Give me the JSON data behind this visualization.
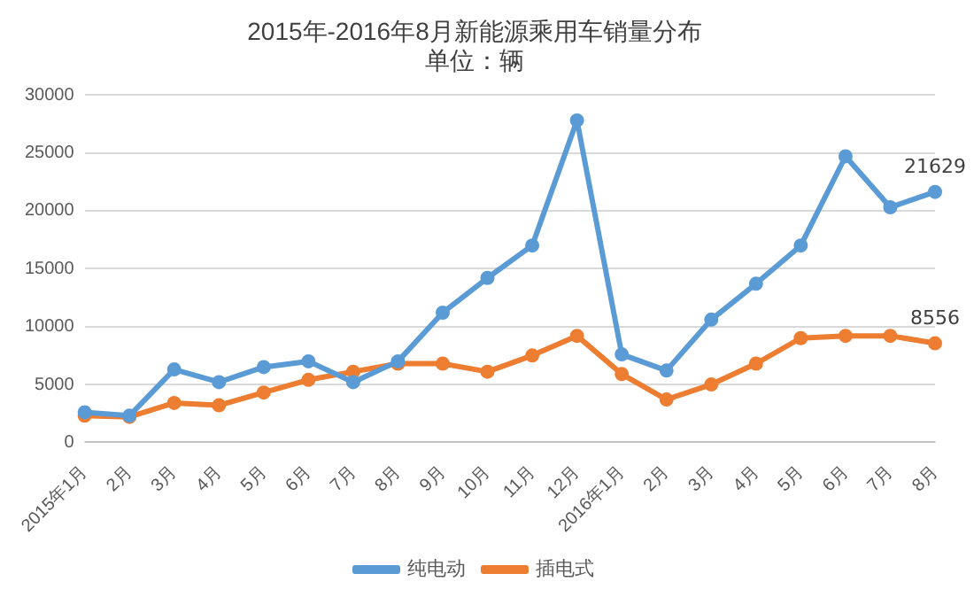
{
  "chart_data": {
    "type": "line",
    "title": "2015年-2016年8月新能源乘用车销量分布",
    "subtitle": "单位：辆",
    "categories": [
      "2015年1月",
      "2月",
      "3月",
      "4月",
      "5月",
      "6月",
      "7月",
      "8月",
      "9月",
      "10月",
      "11月",
      "12月",
      "2016年1月",
      "2月",
      "3月",
      "4月",
      "5月",
      "6月",
      "7月",
      "8月"
    ],
    "series": [
      {
        "name": "纯电动",
        "color": "#5b9bd5",
        "values": [
          2600,
          2300,
          6300,
          5200,
          6500,
          7000,
          5200,
          7000,
          11200,
          14200,
          17000,
          27800,
          7600,
          6200,
          10600,
          13700,
          17000,
          24700,
          20300,
          21629
        ],
        "value_labels": [
          null,
          null,
          null,
          null,
          null,
          null,
          null,
          null,
          null,
          null,
          null,
          null,
          null,
          null,
          null,
          null,
          null,
          null,
          null,
          "21629"
        ]
      },
      {
        "name": "插电式",
        "color": "#ed7d31",
        "values": [
          2300,
          2200,
          3400,
          3200,
          4300,
          5400,
          6100,
          6800,
          6800,
          6100,
          7500,
          9200,
          5900,
          3700,
          5000,
          6800,
          9000,
          9200,
          9200,
          8556
        ],
        "value_labels": [
          null,
          null,
          null,
          null,
          null,
          null,
          null,
          null,
          null,
          null,
          null,
          null,
          null,
          null,
          null,
          null,
          null,
          null,
          null,
          "8556"
        ]
      }
    ],
    "ylim": [
      0,
      30000
    ],
    "yticks": [
      0,
      5000,
      10000,
      15000,
      20000,
      25000,
      30000
    ],
    "grid": "y",
    "legend": "bottom",
    "marker": "circle",
    "line_style": "solid"
  }
}
